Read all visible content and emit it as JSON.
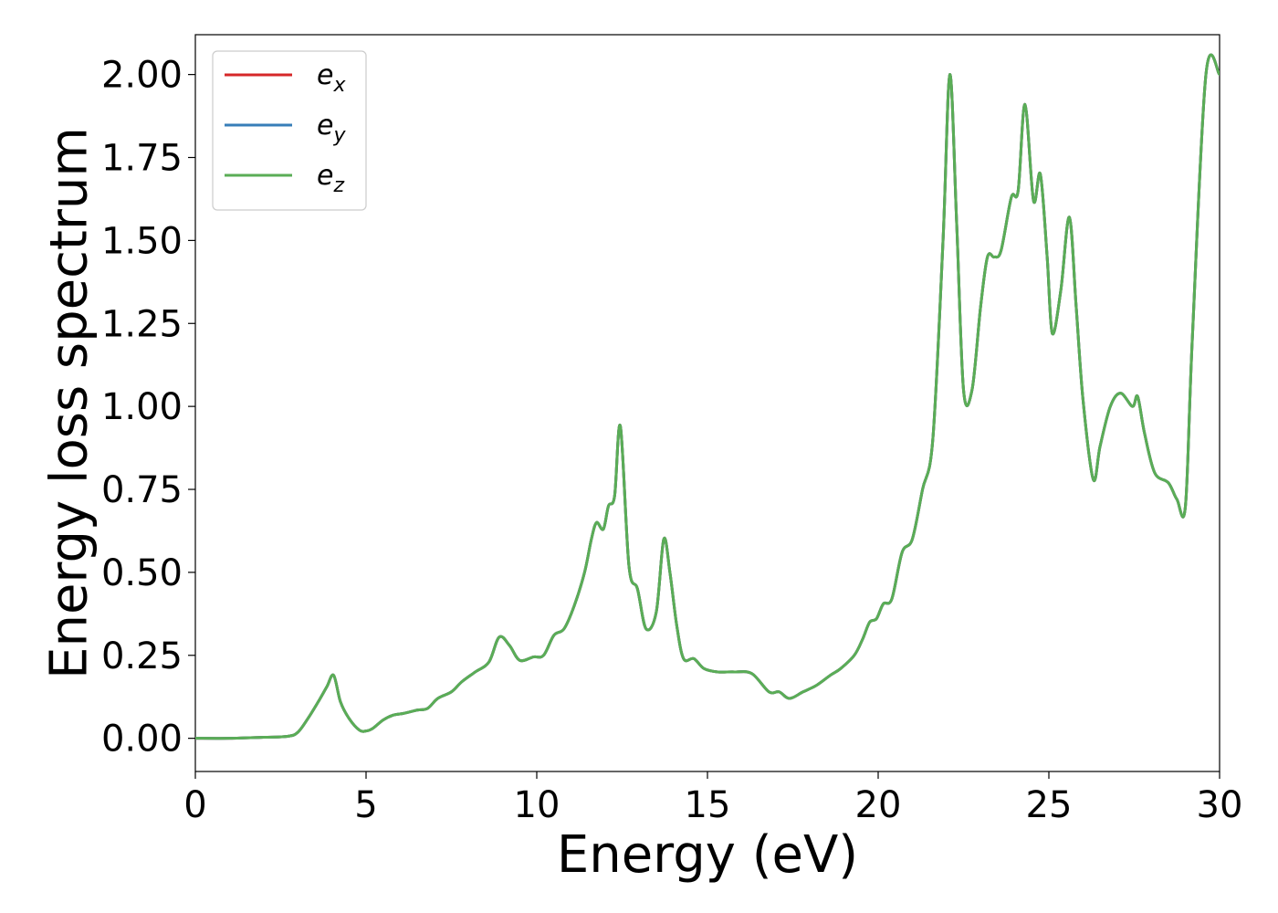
{
  "chart_data": {
    "type": "line",
    "xlabel": "Energy (eV)",
    "ylabel": "Energy loss spectrum",
    "xlim": [
      0,
      30
    ],
    "ylim": [
      -0.1,
      2.12
    ],
    "xticks": [
      0,
      5,
      10,
      15,
      20,
      25,
      30
    ],
    "yticks": [
      0.0,
      0.25,
      0.5,
      0.75,
      1.0,
      1.25,
      1.5,
      1.75,
      2.0
    ],
    "xtick_labels": [
      "0",
      "5",
      "10",
      "15",
      "20",
      "25",
      "30"
    ],
    "ytick_labels": [
      "0.00",
      "0.25",
      "0.50",
      "0.75",
      "1.00",
      "1.25",
      "1.50",
      "1.75",
      "2.00"
    ],
    "grid": false,
    "legend": {
      "placement": "top-left",
      "entries": [
        {
          "base": "e",
          "sub": "x",
          "color": "#d62728"
        },
        {
          "base": "e",
          "sub": "y",
          "color": "#377eb8"
        },
        {
          "base": "e",
          "sub": "z",
          "color": "#5aad56"
        }
      ]
    },
    "x": [
      0,
      1,
      2,
      2.7,
      3.0,
      3.3,
      3.6,
      3.85,
      4.05,
      4.25,
      4.5,
      4.8,
      5.0,
      5.2,
      5.5,
      5.8,
      6.1,
      6.5,
      6.8,
      7.1,
      7.5,
      7.8,
      8.2,
      8.6,
      8.9,
      9.2,
      9.5,
      9.9,
      10.2,
      10.5,
      10.8,
      11.1,
      11.4,
      11.6,
      11.75,
      11.95,
      12.1,
      12.28,
      12.45,
      12.7,
      12.95,
      13.2,
      13.5,
      13.72,
      13.9,
      14.1,
      14.3,
      14.6,
      14.9,
      15.3,
      15.8,
      16.3,
      16.8,
      17.1,
      17.4,
      17.8,
      18.2,
      18.6,
      18.9,
      19.3,
      19.55,
      19.75,
      19.95,
      20.15,
      20.4,
      20.7,
      21.0,
      21.3,
      21.6,
      21.9,
      22.1,
      22.3,
      22.5,
      22.75,
      23.0,
      23.2,
      23.4,
      23.6,
      23.9,
      24.1,
      24.3,
      24.55,
      24.75,
      24.95,
      25.1,
      25.35,
      25.6,
      25.8,
      26.0,
      26.3,
      26.5,
      26.8,
      27.1,
      27.45,
      27.6,
      27.8,
      28.1,
      28.5,
      28.75,
      29.0,
      29.2,
      29.6,
      30.0
    ],
    "series": [
      {
        "name": "e_x",
        "color": "#d62728",
        "values": [
          0.0,
          0.0,
          0.003,
          0.006,
          0.018,
          0.06,
          0.11,
          0.155,
          0.19,
          0.11,
          0.06,
          0.025,
          0.022,
          0.03,
          0.055,
          0.07,
          0.075,
          0.085,
          0.09,
          0.12,
          0.14,
          0.17,
          0.2,
          0.23,
          0.305,
          0.28,
          0.235,
          0.245,
          0.25,
          0.31,
          0.33,
          0.4,
          0.5,
          0.6,
          0.65,
          0.63,
          0.7,
          0.73,
          0.94,
          0.52,
          0.45,
          0.33,
          0.38,
          0.6,
          0.5,
          0.34,
          0.24,
          0.24,
          0.21,
          0.2,
          0.2,
          0.195,
          0.14,
          0.14,
          0.12,
          0.14,
          0.16,
          0.19,
          0.21,
          0.25,
          0.3,
          0.35,
          0.36,
          0.405,
          0.42,
          0.56,
          0.6,
          0.75,
          0.9,
          1.5,
          2.0,
          1.55,
          1.05,
          1.05,
          1.3,
          1.45,
          1.45,
          1.47,
          1.63,
          1.65,
          1.91,
          1.62,
          1.7,
          1.45,
          1.22,
          1.35,
          1.57,
          1.3,
          1.02,
          0.78,
          0.88,
          1.0,
          1.04,
          1.0,
          1.03,
          0.92,
          0.8,
          0.77,
          0.72,
          0.7,
          1.2,
          2.0,
          2.0
        ]
      },
      {
        "name": "e_y",
        "color": "#377eb8",
        "values": [
          0.0,
          0.0,
          0.003,
          0.006,
          0.018,
          0.06,
          0.11,
          0.155,
          0.19,
          0.11,
          0.06,
          0.025,
          0.022,
          0.03,
          0.055,
          0.07,
          0.075,
          0.085,
          0.09,
          0.12,
          0.14,
          0.17,
          0.2,
          0.23,
          0.305,
          0.28,
          0.235,
          0.245,
          0.25,
          0.31,
          0.33,
          0.4,
          0.5,
          0.6,
          0.65,
          0.63,
          0.7,
          0.73,
          0.94,
          0.52,
          0.45,
          0.33,
          0.38,
          0.6,
          0.5,
          0.34,
          0.24,
          0.24,
          0.21,
          0.2,
          0.2,
          0.195,
          0.14,
          0.14,
          0.12,
          0.14,
          0.16,
          0.19,
          0.21,
          0.25,
          0.3,
          0.35,
          0.36,
          0.405,
          0.42,
          0.56,
          0.6,
          0.75,
          0.9,
          1.5,
          2.0,
          1.55,
          1.05,
          1.05,
          1.3,
          1.45,
          1.45,
          1.47,
          1.63,
          1.65,
          1.91,
          1.62,
          1.7,
          1.45,
          1.22,
          1.35,
          1.57,
          1.3,
          1.02,
          0.78,
          0.88,
          1.0,
          1.04,
          1.0,
          1.03,
          0.92,
          0.8,
          0.77,
          0.72,
          0.7,
          1.2,
          2.0,
          2.0
        ]
      },
      {
        "name": "e_z",
        "color": "#5aad56",
        "values": [
          0.0,
          0.0,
          0.003,
          0.006,
          0.018,
          0.06,
          0.11,
          0.155,
          0.19,
          0.11,
          0.06,
          0.025,
          0.022,
          0.03,
          0.055,
          0.07,
          0.075,
          0.085,
          0.09,
          0.12,
          0.14,
          0.17,
          0.2,
          0.23,
          0.305,
          0.28,
          0.235,
          0.245,
          0.25,
          0.31,
          0.33,
          0.4,
          0.5,
          0.6,
          0.65,
          0.63,
          0.7,
          0.73,
          0.94,
          0.52,
          0.45,
          0.33,
          0.38,
          0.6,
          0.5,
          0.34,
          0.24,
          0.24,
          0.21,
          0.2,
          0.2,
          0.195,
          0.14,
          0.14,
          0.12,
          0.14,
          0.16,
          0.19,
          0.21,
          0.25,
          0.3,
          0.35,
          0.36,
          0.405,
          0.42,
          0.56,
          0.6,
          0.75,
          0.9,
          1.5,
          2.0,
          1.55,
          1.05,
          1.05,
          1.3,
          1.45,
          1.45,
          1.47,
          1.63,
          1.65,
          1.91,
          1.62,
          1.7,
          1.45,
          1.22,
          1.35,
          1.57,
          1.3,
          1.02,
          0.78,
          0.88,
          1.0,
          1.04,
          1.0,
          1.03,
          0.92,
          0.8,
          0.77,
          0.72,
          0.7,
          1.2,
          2.0,
          2.0
        ]
      }
    ]
  }
}
